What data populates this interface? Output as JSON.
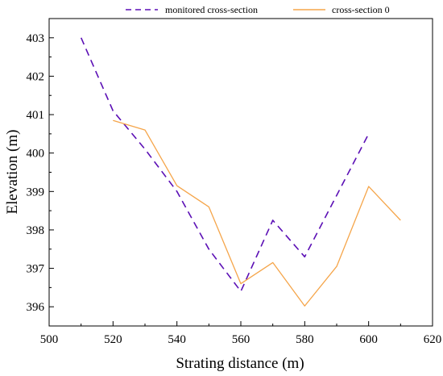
{
  "chart_data": {
    "type": "line",
    "xlabel": "Strating distance (m)",
    "ylabel": "Elevation (m)",
    "xlim": [
      500,
      620
    ],
    "ylim": [
      395.5,
      403.5
    ],
    "xticks": [
      500,
      520,
      540,
      560,
      580,
      600,
      620
    ],
    "yticks": [
      396,
      397,
      398,
      399,
      400,
      401,
      402,
      403
    ],
    "legend_position": "top",
    "grid": false,
    "series": [
      {
        "name": "monitored  cross-section",
        "style": "dashed",
        "color": "#5b0fb5",
        "x": [
          510,
          520,
          530,
          540,
          550,
          560,
          570,
          580,
          590,
          600
        ],
        "y": [
          403.0,
          401.1,
          400.1,
          399.0,
          397.5,
          396.4,
          398.25,
          397.3,
          398.9,
          400.5
        ]
      },
      {
        "name": "cross-section 0",
        "style": "solid",
        "color": "#f5a54a",
        "x": [
          520,
          530,
          540,
          550,
          560,
          570,
          580,
          590,
          600,
          610
        ],
        "y": [
          400.85,
          400.6,
          399.15,
          398.6,
          396.6,
          397.15,
          396.02,
          397.05,
          399.13,
          398.25
        ]
      }
    ]
  }
}
